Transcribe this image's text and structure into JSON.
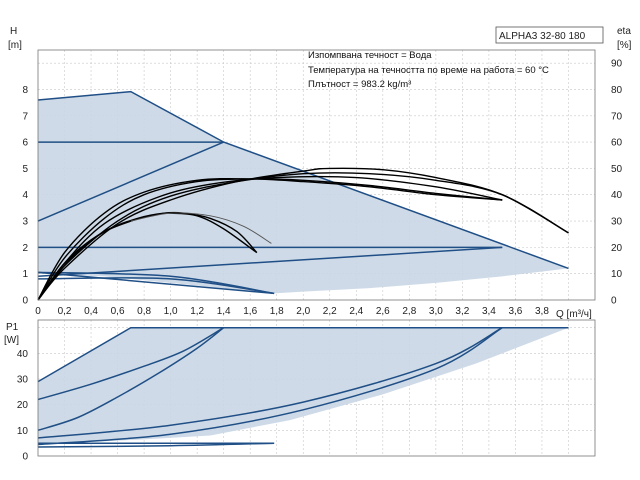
{
  "chart_data": [
    {
      "type": "line",
      "title": "ALPHA3 32-80 180",
      "notes": [
        "Изпомпвана течност = Вода",
        "Температура на течността по време на работа = 60 °C",
        "Плътност = 983.2 kg/m³"
      ],
      "ylabel": "H",
      "yunit": "[m]",
      "y2label": "eta",
      "y2unit": "[%]",
      "xlabel": "Q [m³/ч]",
      "xlim": [
        0,
        4.2
      ],
      "ylim": [
        0,
        9.5
      ],
      "y2lim": [
        0,
        95
      ],
      "xticks": [
        "0",
        "0,2",
        "0,4",
        "0,6",
        "0,8",
        "1,0",
        "1,2",
        "1,4",
        "1,6",
        "1,8",
        "2,0",
        "2,2",
        "2,4",
        "2,6",
        "2,8",
        "3,0",
        "3,2",
        "3,4",
        "3,6",
        "3,8"
      ],
      "yticks": [
        "0",
        "1",
        "2",
        "3",
        "4",
        "5",
        "6",
        "7",
        "8"
      ],
      "y2ticks": [
        "0",
        "10",
        "20",
        "30",
        "40",
        "50",
        "60",
        "70",
        "80",
        "90"
      ],
      "grid": true,
      "envelope": [
        [
          0,
          7.6
        ],
        [
          0.7,
          7.92
        ],
        [
          1.4,
          6.0
        ],
        [
          4.0,
          1.2
        ],
        [
          3.5,
          0.9
        ],
        [
          3.0,
          0.65
        ],
        [
          2.5,
          0.45
        ],
        [
          2.0,
          0.32
        ],
        [
          1.78,
          0.25
        ],
        [
          1.3,
          0.5
        ],
        [
          0.5,
          0.9
        ],
        [
          0,
          1.0
        ]
      ],
      "series": [
        {
          "role": "max-curve",
          "values": [
            [
              0,
              7.6
            ],
            [
              0.7,
              7.92
            ],
            [
              1.4,
              6.0
            ],
            [
              4.0,
              1.2
            ]
          ]
        },
        {
          "role": "constant-pressure",
          "values": [
            [
              0,
              6.0
            ],
            [
              1.4,
              6.0
            ]
          ]
        },
        {
          "role": "proportional-pressure",
          "values": [
            [
              0,
              3.0
            ],
            [
              1.4,
              6.0
            ]
          ]
        },
        {
          "role": "constant-pressure",
          "values": [
            [
              0,
              2.0
            ],
            [
              3.5,
              2.0
            ]
          ]
        },
        {
          "role": "proportional-pressure",
          "values": [
            [
              0,
              0.9
            ],
            [
              3.5,
              2.0
            ]
          ]
        },
        {
          "role": "min-curve",
          "values": [
            [
              0,
              1.05
            ],
            [
              1.78,
              0.25
            ]
          ]
        },
        {
          "role": "system-curve",
          "values": [
            [
              0,
              1.05
            ],
            [
              1.0,
              0.9
            ],
            [
              1.78,
              0.25
            ]
          ]
        },
        {
          "role": "system-curve",
          "values": [
            [
              0,
              0.8
            ],
            [
              1.0,
              0.8
            ],
            [
              1.78,
              0.25
            ]
          ]
        },
        {
          "role": "efficiency",
          "color": "#000000",
          "values": [
            [
              0,
              0
            ],
            [
              0.2,
              16
            ],
            [
              0.5,
              31
            ],
            [
              0.8,
              40
            ],
            [
              1.2,
              45
            ],
            [
              1.6,
              46
            ],
            [
              2.0,
              45.5
            ],
            [
              2.5,
              43.5
            ],
            [
              3.0,
              40.5
            ],
            [
              3.5,
              38
            ]
          ]
        },
        {
          "role": "efficiency",
          "color": "#000000",
          "values": [
            [
              0,
              0
            ],
            [
              0.2,
              18
            ],
            [
              0.5,
              33
            ],
            [
              0.8,
              41
            ],
            [
              1.2,
              45.5
            ],
            [
              1.6,
              46
            ],
            [
              2.0,
              45
            ],
            [
              2.5,
              43
            ],
            [
              3.0,
              40
            ],
            [
              3.5,
              38
            ]
          ]
        },
        {
          "role": "efficiency",
          "color": "#000000",
          "values": [
            [
              0,
              0
            ],
            [
              0.2,
              14
            ],
            [
              0.5,
              29
            ],
            [
              0.9,
              39
            ],
            [
              1.3,
              44
            ],
            [
              1.8,
              46.5
            ],
            [
              2.4,
              46.5
            ],
            [
              3.0,
              43
            ],
            [
              3.5,
              38
            ]
          ]
        },
        {
          "role": "efficiency",
          "color": "#000000",
          "values": [
            [
              0,
              0
            ],
            [
              0.2,
              13
            ],
            [
              0.6,
              30
            ],
            [
              1.0,
              39.5
            ],
            [
              1.5,
              45
            ],
            [
              2.0,
              48
            ],
            [
              2.5,
              48
            ],
            [
              3.0,
              45.5
            ],
            [
              3.5,
              40
            ],
            [
              4.0,
              25.5
            ]
          ]
        },
        {
          "role": "efficiency",
          "color": "#000000",
          "values": [
            [
              0,
              0
            ],
            [
              0.2,
              12
            ],
            [
              0.6,
              29
            ],
            [
              1.0,
              38
            ],
            [
              1.5,
              45
            ],
            [
              2.0,
              49
            ],
            [
              2.2,
              50
            ],
            [
              2.6,
              49.5
            ],
            [
              3.0,
              46.5
            ],
            [
              3.5,
              40
            ],
            [
              4.0,
              25.5
            ]
          ]
        },
        {
          "role": "efficiency",
          "color": "#000000",
          "values": [
            [
              0,
              0
            ],
            [
              0.2,
              14
            ],
            [
              0.45,
              24.5
            ],
            [
              0.7,
              30
            ],
            [
              0.9,
              32.5
            ],
            [
              1.0,
              33
            ],
            [
              1.2,
              32
            ],
            [
              1.4,
              27
            ],
            [
              1.65,
              18
            ]
          ]
        },
        {
          "role": "efficiency",
          "color": "#000000",
          "values": [
            [
              0,
              0
            ],
            [
              0.25,
              16
            ],
            [
              0.5,
              26
            ],
            [
              0.75,
              31
            ],
            [
              0.95,
              33
            ],
            [
              1.1,
              33
            ],
            [
              1.3,
              31
            ],
            [
              1.5,
              26
            ],
            [
              1.65,
              18
            ]
          ]
        },
        {
          "role": "efficiency",
          "color": "#555555",
          "values": [
            [
              0.7,
              30
            ],
            [
              1.0,
              33
            ],
            [
              1.3,
              32
            ],
            [
              1.55,
              28
            ],
            [
              1.76,
              21.5
            ]
          ]
        }
      ]
    },
    {
      "type": "line",
      "ylabel": "P1",
      "yunit": "[W]",
      "xlim": [
        0,
        4.2
      ],
      "ylim": [
        0,
        53
      ],
      "yticks": [
        "0",
        "10",
        "20",
        "30",
        "40"
      ],
      "grid": true,
      "envelope": [
        [
          0,
          29
        ],
        [
          0.7,
          50
        ],
        [
          4.0,
          50
        ],
        [
          3.3,
          36
        ],
        [
          2.6,
          24
        ],
        [
          1.9,
          14
        ],
        [
          1.3,
          8
        ],
        [
          0.8,
          6.5
        ],
        [
          0,
          4.5
        ]
      ],
      "series": [
        {
          "role": "max-power",
          "values": [
            [
              0,
              29
            ],
            [
              0.7,
              50
            ],
            [
              4.0,
              50
            ]
          ]
        },
        {
          "role": "power",
          "values": [
            [
              0,
              22
            ],
            [
              0.4,
              28
            ],
            [
              0.8,
              35
            ],
            [
              1.1,
              41
            ],
            [
              1.4,
              50
            ]
          ]
        },
        {
          "role": "power",
          "values": [
            [
              0,
              10
            ],
            [
              0.3,
              15
            ],
            [
              0.6,
              23
            ],
            [
              0.9,
              32
            ],
            [
              1.2,
              42
            ],
            [
              1.4,
              50
            ]
          ]
        },
        {
          "role": "power",
          "values": [
            [
              0,
              7
            ],
            [
              1.0,
              12
            ],
            [
              2.0,
              21
            ],
            [
              3.0,
              36
            ],
            [
              3.5,
              50
            ]
          ]
        },
        {
          "role": "power",
          "values": [
            [
              0,
              4.5
            ],
            [
              1.0,
              8.5
            ],
            [
              2.0,
              18
            ],
            [
              3.0,
              34
            ],
            [
              3.5,
              50
            ]
          ]
        },
        {
          "role": "min-power",
          "values": [
            [
              0,
              5
            ],
            [
              1.78,
              5
            ]
          ]
        },
        {
          "role": "min-power",
          "values": [
            [
              0,
              3.5
            ],
            [
              1.0,
              4
            ],
            [
              1.78,
              5
            ]
          ]
        }
      ]
    }
  ]
}
